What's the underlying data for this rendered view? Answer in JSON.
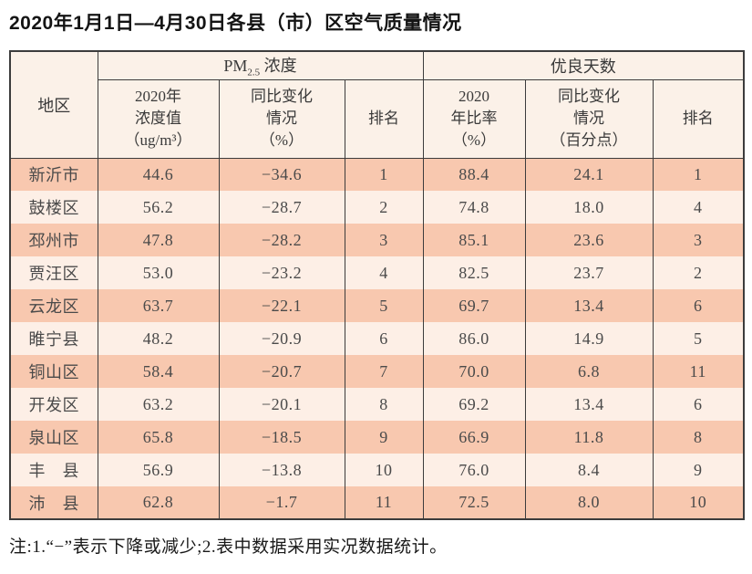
{
  "page": {
    "title": "2020年1月1日—4月30日各县（市）区空气质量情况",
    "note": "注:1.“−”表示下降或减少;2.表中数据采用实况数据统计。"
  },
  "colors": {
    "row-dark": "#f8c8af",
    "row-light": "#fdefe6",
    "header-bg": "#fbf1e8",
    "border": "#3c3c3c"
  },
  "table": {
    "corner_header": "地区",
    "groups": {
      "pm25": {
        "prefix": "PM",
        "sub": "2.5",
        "suffix": " 浓度"
      },
      "good_days": "优良天数"
    },
    "columns": {
      "pm25_value": "2020年\n浓度值\n（ug/m³）",
      "pm25_change": "同比变化\n情况\n（%）",
      "pm25_rank": "排名",
      "good_rate": "2020\n年比率\n（%）",
      "good_change": "同比变化\n情况\n（百分点）",
      "good_rank": "排名"
    },
    "rows": [
      {
        "region": "新沂市",
        "pm25_value": "44.6",
        "pm25_change": "−34.6",
        "pm25_rank": "1",
        "good_rate": "88.4",
        "good_change": "24.1",
        "good_rank": "1"
      },
      {
        "region": "鼓楼区",
        "pm25_value": "56.2",
        "pm25_change": "−28.7",
        "pm25_rank": "2",
        "good_rate": "74.8",
        "good_change": "18.0",
        "good_rank": "4"
      },
      {
        "region": "邳州市",
        "pm25_value": "47.8",
        "pm25_change": "−28.2",
        "pm25_rank": "3",
        "good_rate": "85.1",
        "good_change": "23.6",
        "good_rank": "3"
      },
      {
        "region": "贾汪区",
        "pm25_value": "53.0",
        "pm25_change": "−23.2",
        "pm25_rank": "4",
        "good_rate": "82.5",
        "good_change": "23.7",
        "good_rank": "2"
      },
      {
        "region": "云龙区",
        "pm25_value": "63.7",
        "pm25_change": "−22.1",
        "pm25_rank": "5",
        "good_rate": "69.7",
        "good_change": "13.4",
        "good_rank": "6"
      },
      {
        "region": "睢宁县",
        "pm25_value": "48.2",
        "pm25_change": "−20.9",
        "pm25_rank": "6",
        "good_rate": "86.0",
        "good_change": "14.9",
        "good_rank": "5"
      },
      {
        "region": "铜山区",
        "pm25_value": "58.4",
        "pm25_change": "−20.7",
        "pm25_rank": "7",
        "good_rate": "70.0",
        "good_change": "6.8",
        "good_rank": "11"
      },
      {
        "region": "开发区",
        "pm25_value": "63.2",
        "pm25_change": "−20.1",
        "pm25_rank": "8",
        "good_rate": "69.2",
        "good_change": "13.4",
        "good_rank": "6"
      },
      {
        "region": "泉山区",
        "pm25_value": "65.8",
        "pm25_change": "−18.5",
        "pm25_rank": "9",
        "good_rate": "66.9",
        "good_change": "11.8",
        "good_rank": "8"
      },
      {
        "region": "丰　县",
        "pm25_value": "56.9",
        "pm25_change": "−13.8",
        "pm25_rank": "10",
        "good_rate": "76.0",
        "good_change": "8.4",
        "good_rank": "9"
      },
      {
        "region": "沛　县",
        "pm25_value": "62.8",
        "pm25_change": "−1.7",
        "pm25_rank": "11",
        "good_rate": "72.5",
        "good_change": "8.0",
        "good_rank": "10"
      }
    ]
  }
}
